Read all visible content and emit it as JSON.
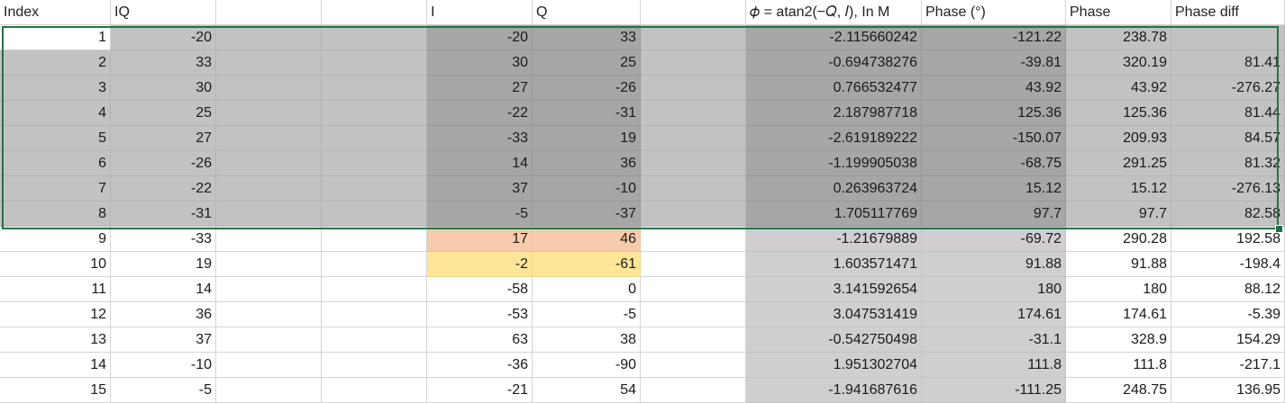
{
  "headers": [
    "Index",
    "IQ",
    "",
    "",
    "I",
    "Q",
    "",
    "𝜙 = atan2(−𝑄, 𝐼), In M",
    "Phase (°)",
    "Phase",
    "Phase diff"
  ],
  "rows": [
    {
      "cells": [
        "1",
        "-20",
        "",
        "",
        "-20",
        "33",
        "",
        "-2.115660242",
        "-121.22",
        "238.78",
        ""
      ]
    },
    {
      "cells": [
        "2",
        "33",
        "",
        "",
        "30",
        "25",
        "",
        "-0.694738276",
        "-39.81",
        "320.19",
        "81.41"
      ]
    },
    {
      "cells": [
        "3",
        "30",
        "",
        "",
        "27",
        "-26",
        "",
        "0.766532477",
        "43.92",
        "43.92",
        "-276.27"
      ]
    },
    {
      "cells": [
        "4",
        "25",
        "",
        "",
        "-22",
        "-31",
        "",
        "2.187987718",
        "125.36",
        "125.36",
        "81.44"
      ]
    },
    {
      "cells": [
        "5",
        "27",
        "",
        "",
        "-33",
        "19",
        "",
        "-2.619189222",
        "-150.07",
        "209.93",
        "84.57"
      ]
    },
    {
      "cells": [
        "6",
        "-26",
        "",
        "",
        "14",
        "36",
        "",
        "-1.199905038",
        "-68.75",
        "291.25",
        "81.32"
      ]
    },
    {
      "cells": [
        "7",
        "-22",
        "",
        "",
        "37",
        "-10",
        "",
        "0.263963724",
        "15.12",
        "15.12",
        "-276.13"
      ]
    },
    {
      "cells": [
        "8",
        "-31",
        "",
        "",
        "-5",
        "-37",
        "",
        "1.705117769",
        "97.7",
        "97.7",
        "82.58"
      ]
    },
    {
      "cells": [
        "9",
        "-33",
        "",
        "",
        "17",
        "46",
        "",
        "-1.21679889",
        "-69.72",
        "290.28",
        "192.58"
      ]
    },
    {
      "cells": [
        "10",
        "19",
        "",
        "",
        "-2",
        "-61",
        "",
        "1.603571471",
        "91.88",
        "91.88",
        "-198.4"
      ]
    },
    {
      "cells": [
        "11",
        "14",
        "",
        "",
        "-58",
        "0",
        "",
        "3.141592654",
        "180",
        "180",
        "88.12"
      ]
    },
    {
      "cells": [
        "12",
        "36",
        "",
        "",
        "-53",
        "-5",
        "",
        "3.047531419",
        "174.61",
        "174.61",
        "-5.39"
      ]
    },
    {
      "cells": [
        "13",
        "37",
        "",
        "",
        "63",
        "38",
        "",
        "-0.542750498",
        "-31.1",
        "328.9",
        "154.29"
      ]
    },
    {
      "cells": [
        "14",
        "-10",
        "",
        "",
        "-36",
        "-90",
        "",
        "1.951302704",
        "111.8",
        "111.8",
        "-217.1"
      ]
    },
    {
      "cells": [
        "15",
        "-5",
        "",
        "",
        "-21",
        "54",
        "",
        "-1.941687616",
        "-111.25",
        "248.75",
        "136.95"
      ]
    }
  ],
  "colors": {
    "selection_border": "#217346",
    "gray_light": "#c2c2c2",
    "gray_dark": "#a6a6a6",
    "gray_pale": "#d0cece",
    "orange": "#f7cbac",
    "yellow": "#fee598",
    "gridline": "#d4d4d4"
  }
}
